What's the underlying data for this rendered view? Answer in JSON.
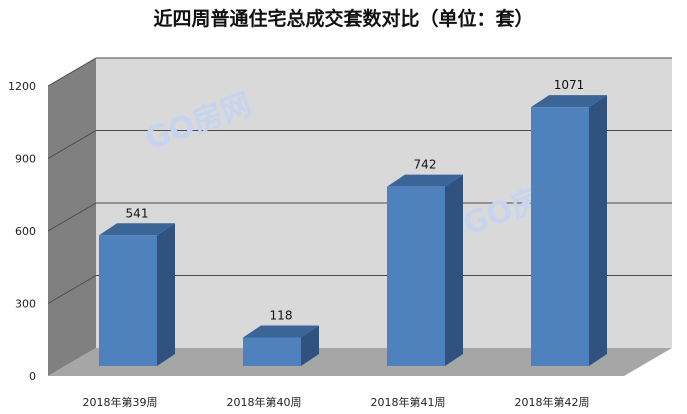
{
  "chart_data": {
    "type": "bar",
    "title": "近四周普通住宅总成交套数对比（单位：套）",
    "categories": [
      "2018年第39周",
      "2018年第40周",
      "2018年第41周",
      "2018年第42周"
    ],
    "values": [
      541,
      118,
      742,
      1071
    ],
    "data_labels": [
      "541",
      "118",
      "742",
      "1071"
    ],
    "yticks": [
      0,
      300,
      600,
      900,
      1200
    ],
    "ylim": [
      0,
      1200
    ],
    "grid": true,
    "style": "3d-column",
    "colors": {
      "bar_front": "#4f81bd",
      "bar_side": "#2f527f",
      "bar_top": "#3c6597",
      "back_wall": "#d9d9d9",
      "side_wall": "#808080",
      "floor": "#a6a6a6"
    }
  },
  "watermarks": [
    "GO房网",
    "GO房网"
  ]
}
